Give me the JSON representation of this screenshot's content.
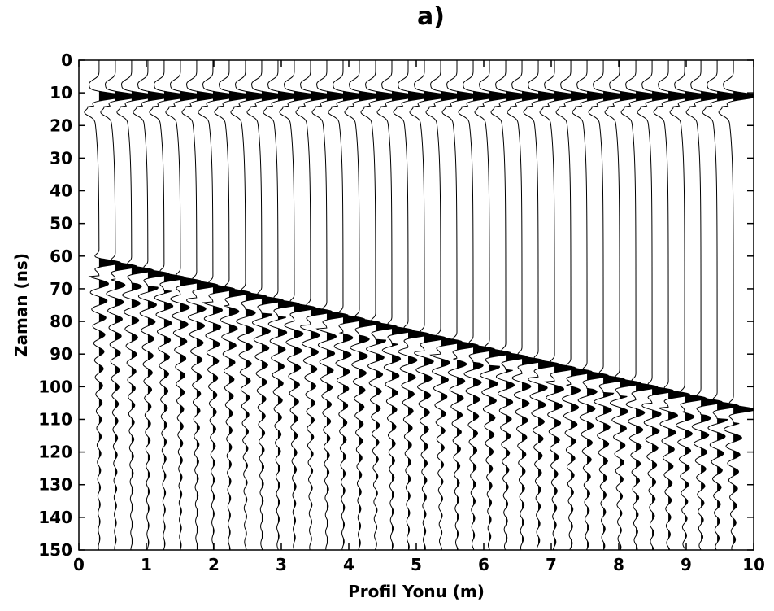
{
  "chart_data": {
    "type": "wiggle",
    "title": "a)",
    "xlabel": "Profil Yonu (m)",
    "ylabel": "Zaman (ns)",
    "xlim": [
      0,
      10
    ],
    "ylim": [
      0,
      150
    ],
    "y_reversed": true,
    "x_ticks": [
      "0",
      "1",
      "2",
      "3",
      "4",
      "5",
      "6",
      "7",
      "8",
      "9",
      "10"
    ],
    "y_ticks": [
      "0",
      "10",
      "20",
      "30",
      "40",
      "50",
      "60",
      "70",
      "80",
      "90",
      "100",
      "110",
      "120",
      "130",
      "140",
      "150"
    ],
    "traces": {
      "count": 40,
      "x_start_m": 0.3,
      "x_end_m": 9.7,
      "direct_wave_time_ns": 11,
      "reflection_time_start_ns": 62,
      "reflection_time_end_ns": 107
    },
    "colors": {
      "ink": "#000000",
      "background": "#ffffff"
    }
  }
}
